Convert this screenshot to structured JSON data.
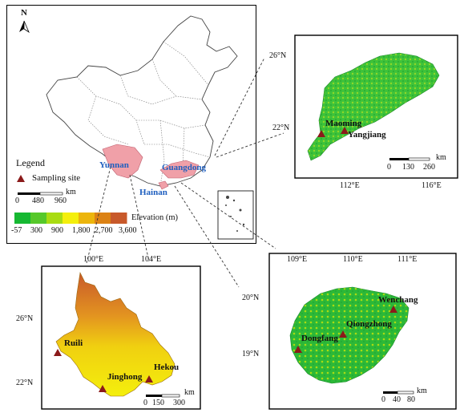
{
  "main": {
    "north": "N",
    "legend_title": "Legend",
    "sampling_label": "Sampling site",
    "scale_ticks": [
      "0",
      "480",
      "960"
    ],
    "scale_unit": "km",
    "elevation_title": "Elevation (m)",
    "elevation_ticks": [
      "-57",
      "300",
      "900",
      "1,800",
      "2,700",
      "3,600"
    ],
    "elevation_colors": [
      "#16b832",
      "#56c82a",
      "#a9dc12",
      "#f4ef0c",
      "#ecb50c",
      "#dc8214",
      "#c8592a"
    ],
    "provinces": {
      "yunnan": "Yunnan",
      "guangdong": "Guangdong",
      "hainan": "Hainan"
    }
  },
  "guangdong": {
    "lat_ticks": [
      "26°N",
      "22°N"
    ],
    "lon_ticks": [
      "112°E",
      "116°E"
    ],
    "sites": [
      "Maoming",
      "Yangjiang"
    ],
    "scale_ticks": [
      "0",
      "130",
      "260"
    ],
    "scale_unit": "km"
  },
  "yunnan": {
    "lat_ticks": [
      "26°N",
      "22°N"
    ],
    "lon_ticks": [
      "100°E",
      "104°E"
    ],
    "sites": [
      "Ruili",
      "Jinghong",
      "Hekou"
    ],
    "scale_ticks": [
      "0",
      "150",
      "300"
    ],
    "scale_unit": "km"
  },
  "hainan": {
    "lat_ticks": [
      "20°N",
      "19°N"
    ],
    "lon_ticks": [
      "109°E",
      "110°E",
      "111°E"
    ],
    "sites": [
      "Wenchang",
      "Qiongzhong",
      "Dongfang"
    ],
    "scale_ticks": [
      "0",
      "40",
      "80"
    ],
    "scale_unit": "km"
  }
}
